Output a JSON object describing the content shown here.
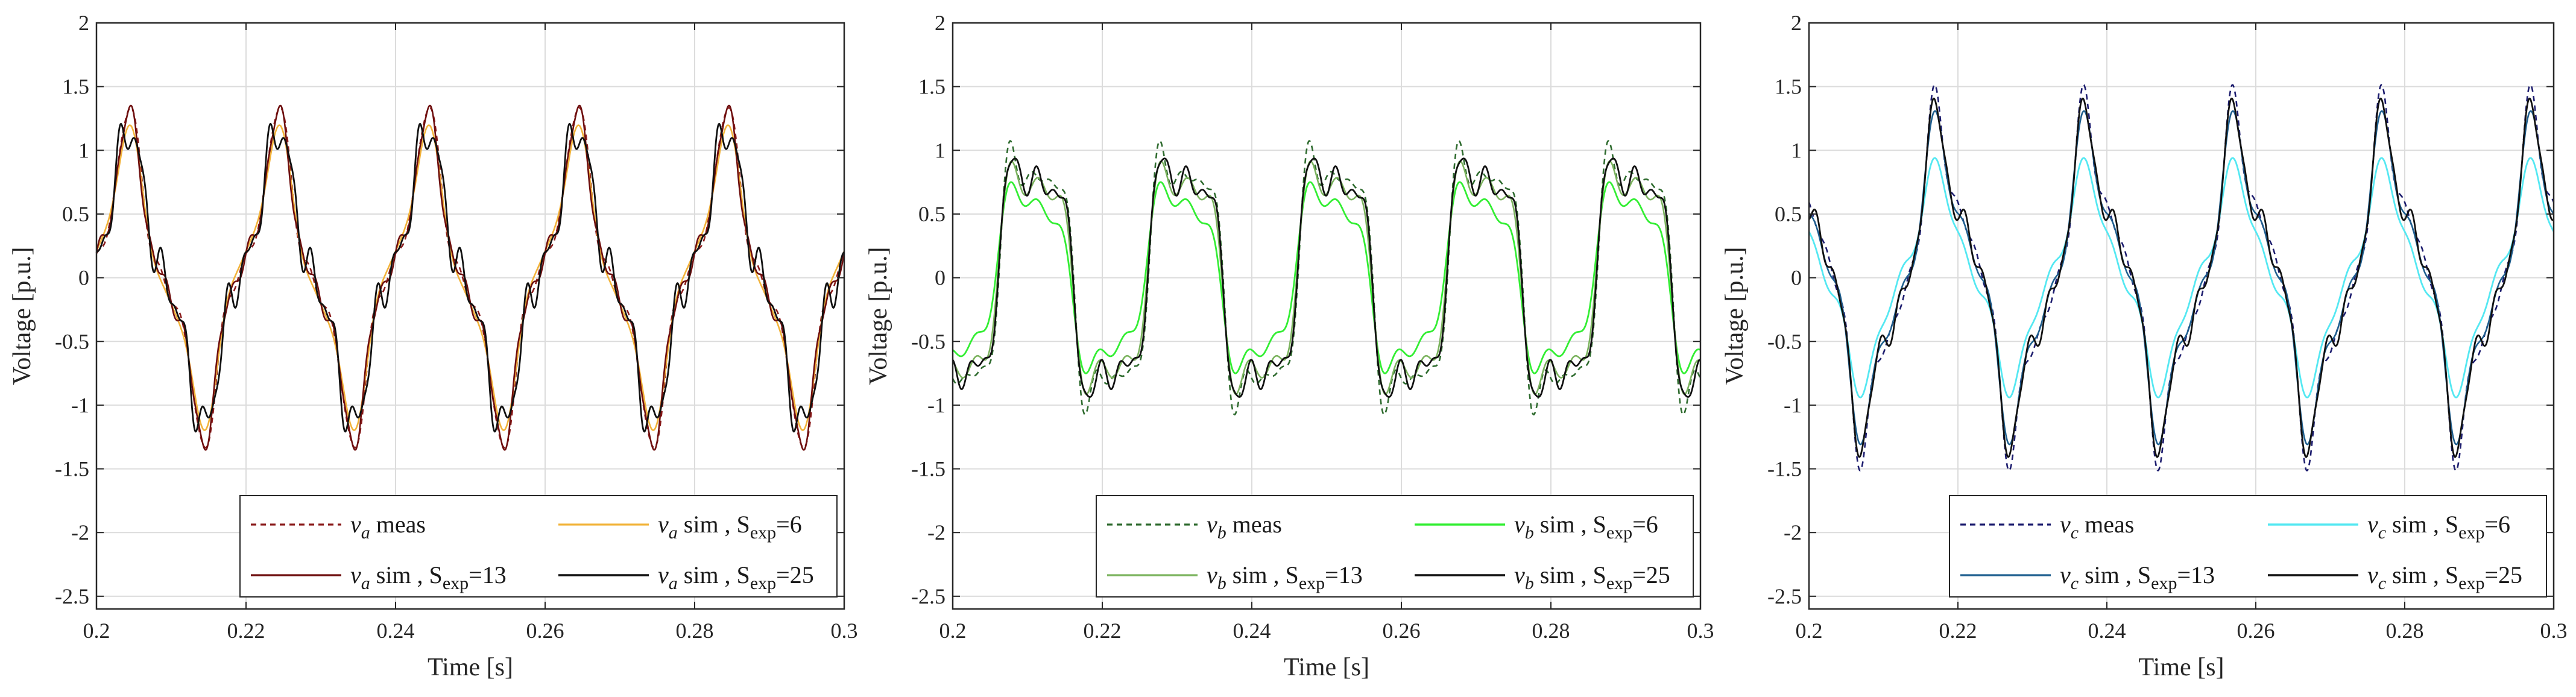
{
  "chart_data": [
    {
      "type": "line",
      "phase": "a",
      "xlabel": "Time [s]",
      "ylabel": "Voltage [p.u.]",
      "xlim": [
        0.2,
        0.3
      ],
      "ylim": [
        -2.6,
        2
      ],
      "xticks": [
        0.2,
        0.22,
        0.24,
        0.26,
        0.28,
        0.3
      ],
      "xtick_labels": [
        "0.2",
        "0.22",
        "0.24",
        "0.26",
        "0.28",
        "0.3"
      ],
      "yticks": [
        -2.5,
        -2,
        -1.5,
        -1,
        -0.5,
        0,
        0.5,
        1,
        1.5,
        2
      ],
      "ytick_labels": [
        "-2.5",
        "-2",
        "-1.5",
        "-1",
        "-0.5",
        "0",
        "0.5",
        "1",
        "1.5",
        "2"
      ],
      "grid": true,
      "legend_position": "bottom-right",
      "fundamental_hz": 50,
      "series": [
        {
          "name": "meas",
          "legend": {
            "var": "v",
            "sub": "a",
            "text": " meas",
            "sexp": ""
          },
          "color": "#8b1c1c",
          "dashed": true,
          "stroke": 2.6,
          "harmonics": [
            {
              "n": 1,
              "amp": 0.98,
              "phase_deg": 15
            },
            {
              "n": 3,
              "amp": 0.3,
              "phase_deg": 210
            },
            {
              "n": 5,
              "amp": 0.08,
              "phase_deg": 40
            },
            {
              "n": 7,
              "amp": 0.04,
              "phase_deg": 120
            }
          ]
        },
        {
          "name": "sim S_exp=6",
          "legend": {
            "var": "v",
            "sub": "a",
            "text": " sim , S",
            "sexp": "6"
          },
          "color": "#f2b33a",
          "dashed": false,
          "stroke": 2.6,
          "harmonics": [
            {
              "n": 1,
              "amp": 0.92,
              "phase_deg": 18
            },
            {
              "n": 3,
              "amp": 0.24,
              "phase_deg": 205
            },
            {
              "n": 5,
              "amp": 0.05,
              "phase_deg": 30
            }
          ]
        },
        {
          "name": "sim S_exp=13",
          "legend": {
            "var": "v",
            "sub": "a",
            "text": " sim , S",
            "sexp": "13"
          },
          "color": "#6e0f0f",
          "dashed": false,
          "stroke": 2.6,
          "harmonics": [
            {
              "n": 1,
              "amp": 0.96,
              "phase_deg": 16
            },
            {
              "n": 3,
              "amp": 0.28,
              "phase_deg": 212
            },
            {
              "n": 5,
              "amp": 0.1,
              "phase_deg": 45
            },
            {
              "n": 9,
              "amp": 0.05,
              "phase_deg": 10
            }
          ]
        },
        {
          "name": "sim S_exp=25",
          "legend": {
            "var": "v",
            "sub": "a",
            "text": " sim , S",
            "sexp": "25"
          },
          "color": "#111111",
          "dashed": false,
          "stroke": 2.8,
          "harmonics": [
            {
              "n": 1,
              "amp": 0.95,
              "phase_deg": 14
            },
            {
              "n": 3,
              "amp": 0.22,
              "phase_deg": 215
            },
            {
              "n": 7,
              "amp": 0.14,
              "phase_deg": 60
            },
            {
              "n": 11,
              "amp": 0.07,
              "phase_deg": 200
            }
          ]
        }
      ]
    },
    {
      "type": "line",
      "phase": "b",
      "xlabel": "Time [s]",
      "ylabel": "Voltage [p.u.]",
      "xlim": [
        0.2,
        0.3
      ],
      "ylim": [
        -2.6,
        2
      ],
      "xticks": [
        0.2,
        0.22,
        0.24,
        0.26,
        0.28,
        0.3
      ],
      "xtick_labels": [
        "0.2",
        "0.22",
        "0.24",
        "0.26",
        "0.28",
        "0.3"
      ],
      "yticks": [
        -2.5,
        -2,
        -1.5,
        -1,
        -0.5,
        0,
        0.5,
        1,
        1.5,
        2
      ],
      "ytick_labels": [
        "-2.5",
        "-2",
        "-1.5",
        "-1",
        "-0.5",
        "0",
        "0.5",
        "1",
        "1.5",
        "2"
      ],
      "grid": true,
      "legend_position": "bottom-right",
      "fundamental_hz": 50,
      "series": [
        {
          "name": "meas",
          "legend": {
            "var": "v",
            "sub": "b",
            "text": " meas",
            "sexp": ""
          },
          "color": "#2e6b2e",
          "dashed": true,
          "stroke": 2.6,
          "harmonics": [
            {
              "n": 1,
              "amp": 1.0,
              "phase_deg": -105
            },
            {
              "n": 3,
              "amp": 0.32,
              "phase_deg": 30
            },
            {
              "n": 5,
              "amp": 0.18,
              "phase_deg": 150
            },
            {
              "n": 7,
              "amp": 0.08,
              "phase_deg": 250
            }
          ]
        },
        {
          "name": "sim S_exp=6",
          "legend": {
            "var": "v",
            "sub": "b",
            "text": " sim , S",
            "sexp": "6"
          },
          "color": "#33ee33",
          "dashed": false,
          "stroke": 2.8,
          "harmonics": [
            {
              "n": 1,
              "amp": 0.72,
              "phase_deg": -95
            },
            {
              "n": 3,
              "amp": 0.18,
              "phase_deg": 40
            },
            {
              "n": 5,
              "amp": 0.1,
              "phase_deg": 160
            }
          ]
        },
        {
          "name": "sim S_exp=13",
          "legend": {
            "var": "v",
            "sub": "b",
            "text": " sim , S",
            "sexp": "13"
          },
          "color": "#7bb35e",
          "dashed": false,
          "stroke": 2.6,
          "harmonics": [
            {
              "n": 1,
              "amp": 0.9,
              "phase_deg": -103
            },
            {
              "n": 3,
              "amp": 0.26,
              "phase_deg": 35
            },
            {
              "n": 5,
              "amp": 0.15,
              "phase_deg": 152
            }
          ]
        },
        {
          "name": "sim S_exp=25",
          "legend": {
            "var": "v",
            "sub": "b",
            "text": " sim , S",
            "sexp": "25"
          },
          "color": "#111111",
          "dashed": false,
          "stroke": 2.8,
          "harmonics": [
            {
              "n": 1,
              "amp": 0.95,
              "phase_deg": -104
            },
            {
              "n": 3,
              "amp": 0.28,
              "phase_deg": 28
            },
            {
              "n": 5,
              "amp": 0.16,
              "phase_deg": 148
            },
            {
              "n": 9,
              "amp": 0.06,
              "phase_deg": 90
            }
          ]
        }
      ]
    },
    {
      "type": "line",
      "phase": "c",
      "xlabel": "Time [s]",
      "ylabel": "Voltage [p.u.]",
      "xlim": [
        0.2,
        0.3
      ],
      "ylim": [
        -2.6,
        2
      ],
      "xticks": [
        0.2,
        0.22,
        0.24,
        0.26,
        0.28,
        0.3
      ],
      "xtick_labels": [
        "0.2",
        "0.22",
        "0.24",
        "0.26",
        "0.28",
        "0.3"
      ],
      "yticks": [
        -2.5,
        -2,
        -1.5,
        -1,
        -0.5,
        0,
        0.5,
        1,
        1.5,
        2
      ],
      "ytick_labels": [
        "-2.5",
        "-2",
        "-1.5",
        "-1",
        "-0.5",
        "0",
        "0.5",
        "1",
        "1.5",
        "2"
      ],
      "grid": true,
      "legend_position": "bottom-right",
      "fundamental_hz": 50,
      "series": [
        {
          "name": "meas",
          "legend": {
            "var": "v",
            "sub": "c",
            "text": " meas",
            "sexp": ""
          },
          "color": "#1c1c6e",
          "dashed": true,
          "stroke": 2.6,
          "harmonics": [
            {
              "n": 1,
              "amp": 1.02,
              "phase_deg": 130
            },
            {
              "n": 3,
              "amp": 0.3,
              "phase_deg": 260
            },
            {
              "n": 5,
              "amp": 0.16,
              "phase_deg": 20
            },
            {
              "n": 7,
              "amp": 0.08,
              "phase_deg": 140
            }
          ]
        },
        {
          "name": "sim S_exp=6",
          "legend": {
            "var": "v",
            "sub": "c",
            "text": " sim , S",
            "sexp": "6"
          },
          "color": "#55e8f2",
          "dashed": false,
          "stroke": 2.8,
          "harmonics": [
            {
              "n": 1,
              "amp": 0.72,
              "phase_deg": 140
            },
            {
              "n": 3,
              "amp": 0.15,
              "phase_deg": 250
            },
            {
              "n": 5,
              "amp": 0.08,
              "phase_deg": 30
            }
          ]
        },
        {
          "name": "sim S_exp=13",
          "legend": {
            "var": "v",
            "sub": "c",
            "text": " sim , S",
            "sexp": "13"
          },
          "color": "#1f5f8f",
          "dashed": false,
          "stroke": 2.6,
          "harmonics": [
            {
              "n": 1,
              "amp": 0.95,
              "phase_deg": 132
            },
            {
              "n": 3,
              "amp": 0.26,
              "phase_deg": 258
            },
            {
              "n": 5,
              "amp": 0.13,
              "phase_deg": 24
            }
          ]
        },
        {
          "name": "sim S_exp=25",
          "legend": {
            "var": "v",
            "sub": "c",
            "text": " sim , S",
            "sexp": "25"
          },
          "color": "#111111",
          "dashed": false,
          "stroke": 2.8,
          "harmonics": [
            {
              "n": 1,
              "amp": 0.98,
              "phase_deg": 131
            },
            {
              "n": 3,
              "amp": 0.28,
              "phase_deg": 262
            },
            {
              "n": 5,
              "amp": 0.15,
              "phase_deg": 18
            },
            {
              "n": 9,
              "amp": 0.06,
              "phase_deg": 300
            }
          ]
        }
      ]
    }
  ]
}
